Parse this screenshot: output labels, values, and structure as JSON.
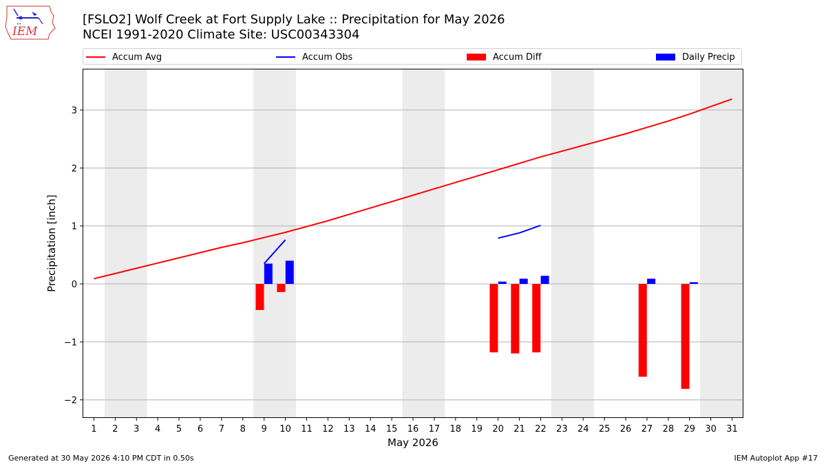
{
  "header": {
    "title_line1": "[FSLO2] Wolf Creek at Fort Supply Lake :: Precipitation for May 2026",
    "title_line2": "NCEI 1991-2020 Climate Site: USC00343304"
  },
  "logo": {
    "text": "IEM"
  },
  "legend": {
    "avg_label": "Accum Avg",
    "obs_label": "Accum Obs",
    "diff_label": "Accum Diff",
    "daily_label": "Daily Precip"
  },
  "colors": {
    "avg": "#ff0000",
    "obs": "#0000ff",
    "diff": "#ff0000",
    "daily": "#0000ff",
    "weekend": "#ececec",
    "grid": "#b0b0b0"
  },
  "footer": {
    "left": "Generated at 30 May 2026 4:10 PM CDT in 0.50s",
    "right": "IEM Autoplot App #17"
  },
  "chart_data": {
    "type": "bar",
    "xlabel": "May 2026",
    "ylabel": "Precipitation [inch]",
    "xlim": [
      0.5,
      31.5
    ],
    "ylim": [
      -2.3,
      3.7
    ],
    "yticks": [
      -2,
      -1,
      0,
      1,
      2,
      3
    ],
    "ytick_labels": [
      "−2",
      "−1",
      "0",
      "1",
      "2",
      "3"
    ],
    "x_categories": [
      "1",
      "2",
      "3",
      "4",
      "5",
      "6",
      "7",
      "8",
      "9",
      "10",
      "11",
      "12",
      "13",
      "14",
      "15",
      "16",
      "17",
      "18",
      "19",
      "20",
      "21",
      "22",
      "23",
      "24",
      "25",
      "26",
      "27",
      "28",
      "29",
      "30",
      "31"
    ],
    "weekend_day_pairs": [
      [
        2,
        3
      ],
      [
        9,
        10
      ],
      [
        16,
        17
      ],
      [
        23,
        24
      ],
      [
        30,
        31
      ]
    ],
    "accum_avg": {
      "days": [
        1,
        2,
        3,
        4,
        5,
        6,
        7,
        8,
        9,
        10,
        11,
        12,
        13,
        14,
        15,
        16,
        17,
        18,
        19,
        20,
        21,
        22,
        23,
        24,
        25,
        26,
        27,
        28,
        29,
        30,
        31
      ],
      "values": [
        0.09,
        0.18,
        0.27,
        0.36,
        0.45,
        0.54,
        0.63,
        0.71,
        0.8,
        0.89,
        0.99,
        1.09,
        1.2,
        1.31,
        1.42,
        1.53,
        1.64,
        1.75,
        1.86,
        1.97,
        2.08,
        2.19,
        2.29,
        2.39,
        2.49,
        2.59,
        2.7,
        2.81,
        2.93,
        3.06,
        3.19
      ]
    },
    "accum_obs": [
      {
        "days": [
          9,
          10
        ],
        "values": [
          0.35,
          0.76
        ]
      },
      {
        "days": [
          20,
          21,
          22
        ],
        "values": [
          0.79,
          0.88,
          1.01
        ]
      }
    ],
    "accum_diff": {
      "days": [
        9,
        10,
        20,
        21,
        22,
        27,
        29
      ],
      "values": [
        -0.45,
        -0.14,
        -1.18,
        -1.2,
        -1.18,
        -1.6,
        -1.81
      ]
    },
    "daily_precip": {
      "days": [
        9,
        10,
        20,
        21,
        22,
        27,
        29
      ],
      "values": [
        0.35,
        0.4,
        0.04,
        0.09,
        0.14,
        0.09,
        0.03
      ]
    }
  }
}
